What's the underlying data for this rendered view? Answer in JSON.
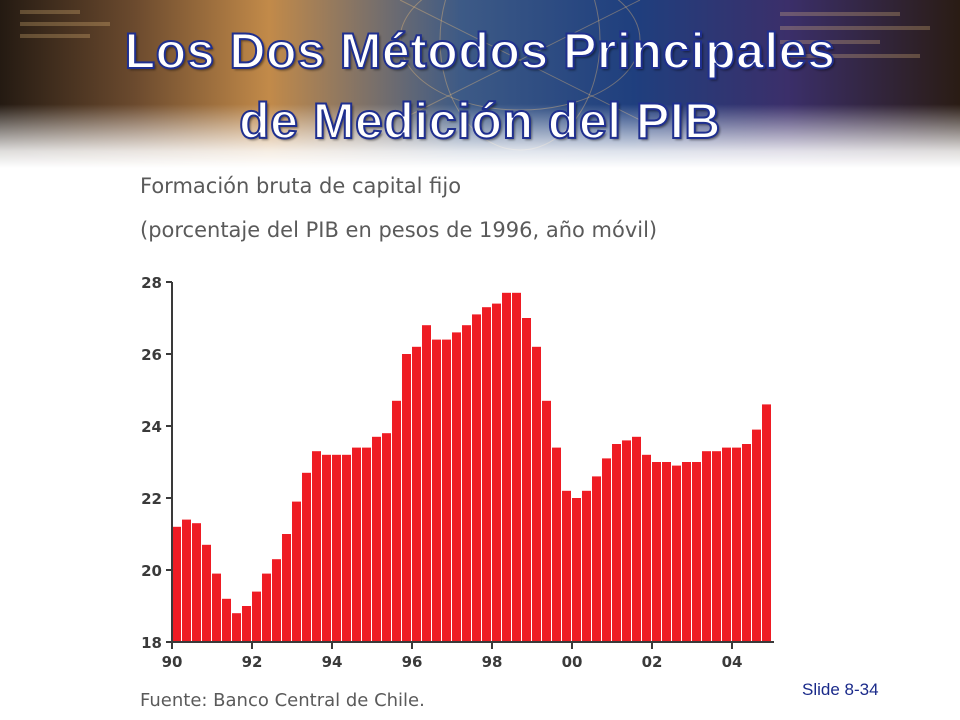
{
  "slide": {
    "title_line_1": "Los Dos Métodos Principales",
    "title_line_2": "de Medición del PIB",
    "slide_number": "Slide 8-34"
  },
  "colors": {
    "bar": "#ee1c24",
    "title_fill": "#ffffff",
    "title_outline": "#1f2f8f",
    "axis_text": "#3a3a3a"
  },
  "chart_data": {
    "type": "bar",
    "title": "Formación bruta de capital fijo",
    "subtitle": "(porcentaje del PIB en pesos de 1996, año móvil)",
    "source": "Fuente: Banco Central de Chile.",
    "ylim": [
      18,
      28
    ],
    "y_ticks": [
      "28",
      "26",
      "24",
      "22",
      "20",
      "18"
    ],
    "x_tick_labels": [
      "90",
      "92",
      "94",
      "96",
      "98",
      "00",
      "02",
      "04"
    ],
    "frequency": "quarterly",
    "start": "1990 Q1",
    "grid": false,
    "values": [
      21.2,
      21.4,
      21.3,
      20.7,
      19.9,
      19.2,
      18.8,
      19.0,
      19.4,
      19.9,
      20.3,
      21.0,
      21.9,
      22.7,
      23.3,
      23.2,
      23.2,
      23.2,
      23.4,
      23.4,
      23.7,
      23.8,
      24.7,
      26.0,
      26.2,
      26.8,
      26.4,
      26.4,
      26.6,
      26.8,
      27.1,
      27.3,
      27.4,
      27.7,
      27.7,
      27.0,
      26.2,
      24.7,
      23.4,
      22.2,
      22.0,
      22.2,
      22.6,
      23.1,
      23.5,
      23.6,
      23.7,
      23.2,
      23.0,
      23.0,
      22.9,
      23.0,
      23.0,
      23.3,
      23.3,
      23.4,
      23.4,
      23.5,
      23.9,
      24.6
    ]
  }
}
